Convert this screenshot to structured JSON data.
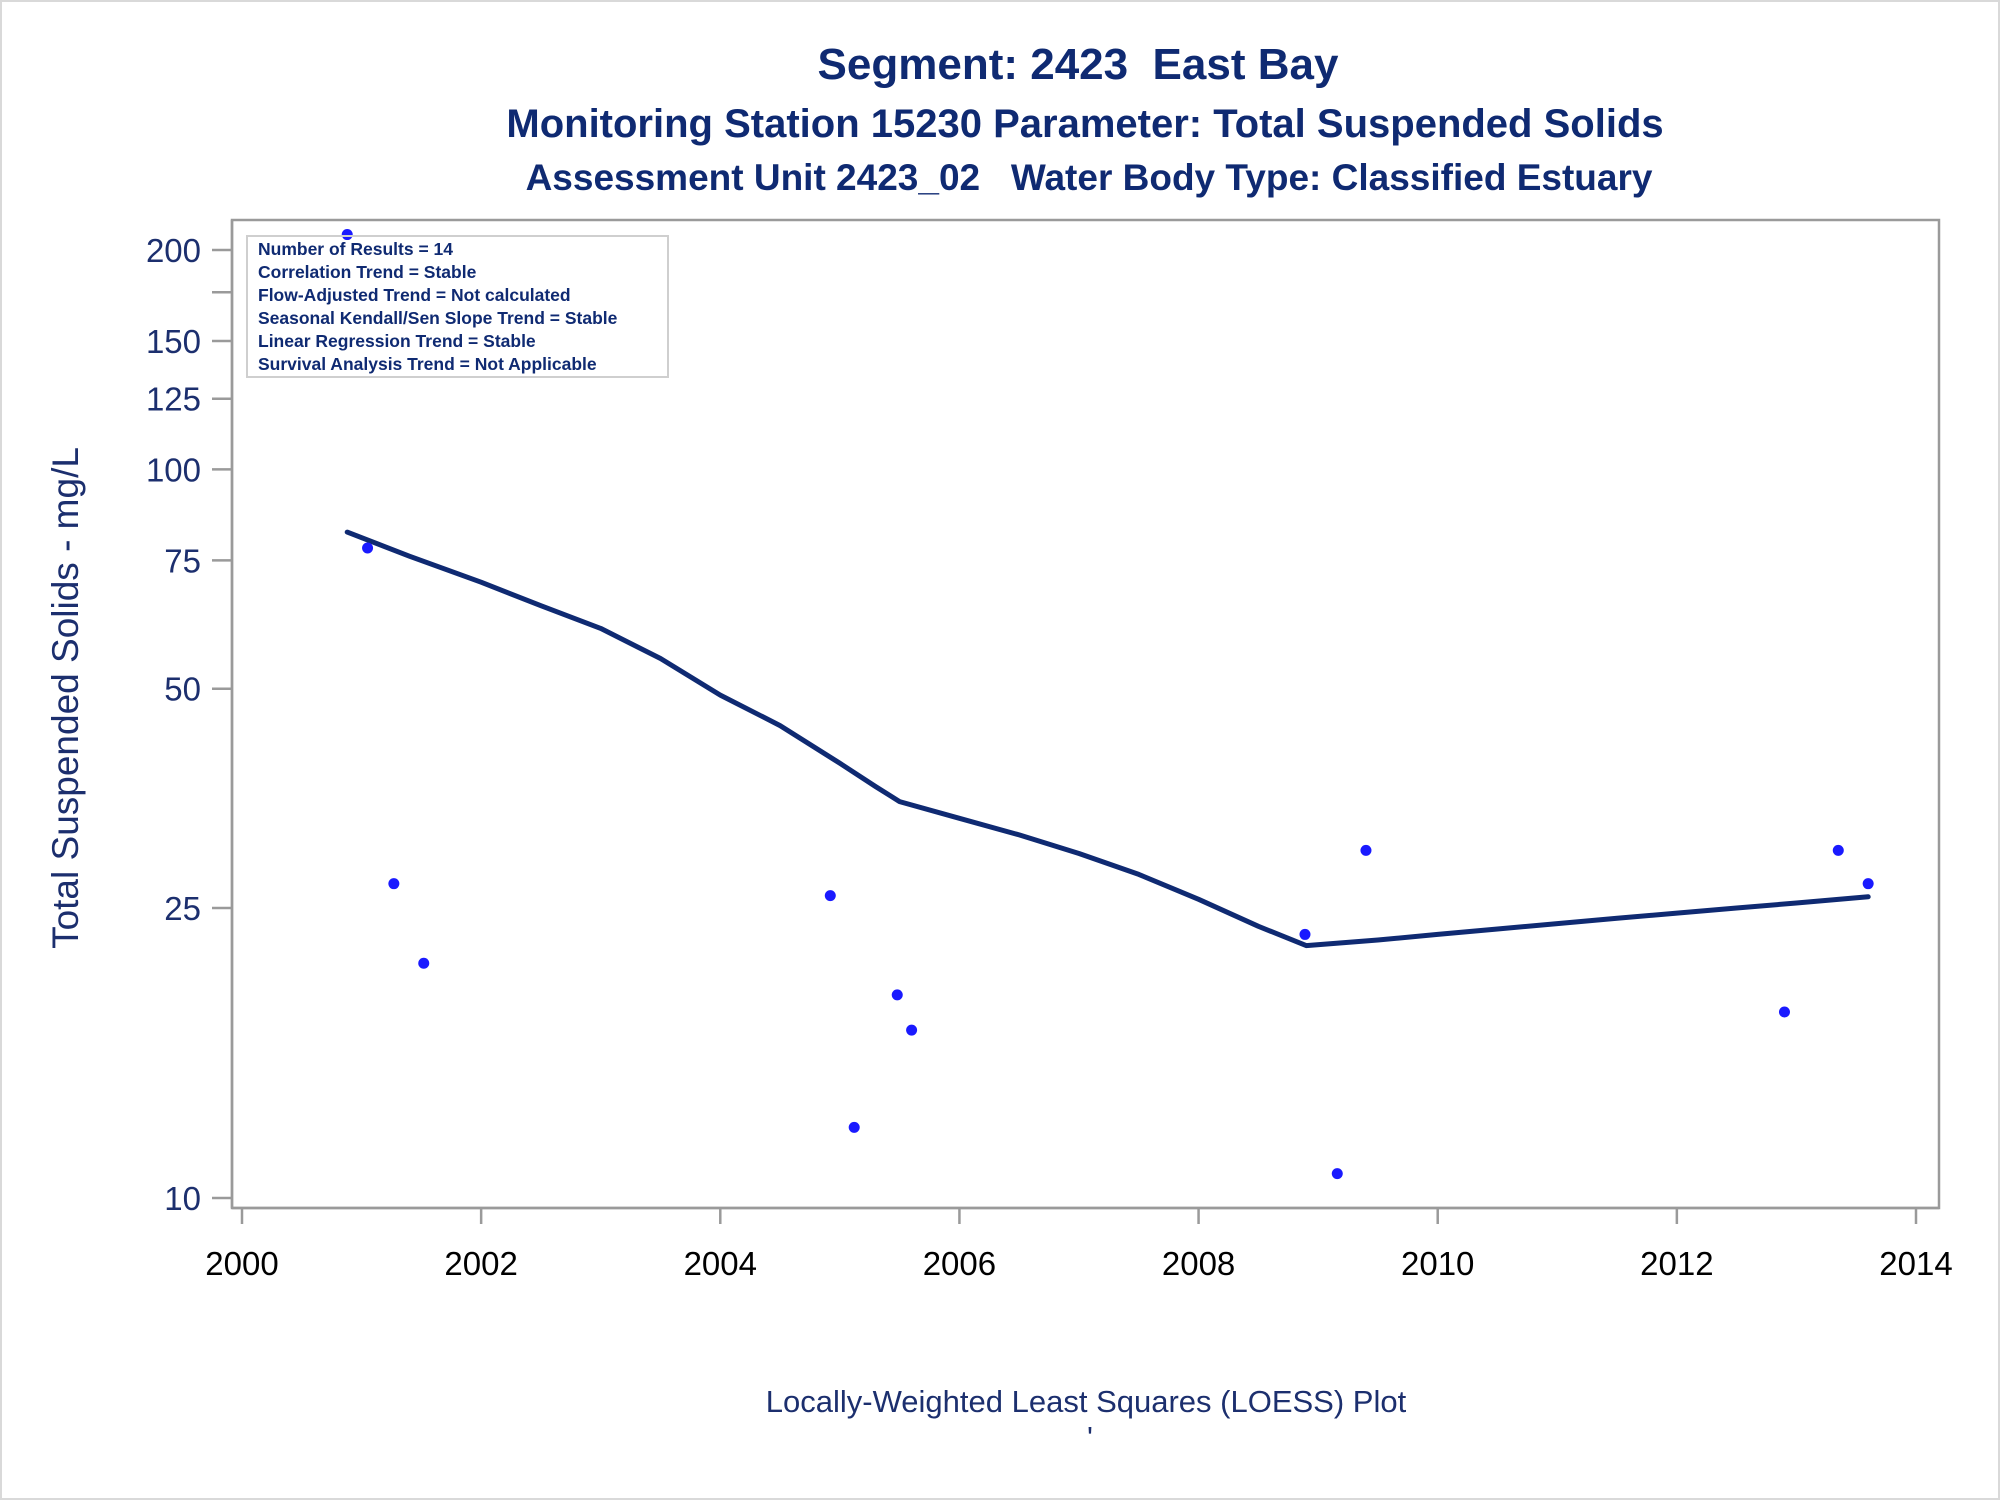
{
  "chart_data": {
    "type": "scatter",
    "title": "Segment: 2423  East Bay",
    "subtitle_1": "Monitoring Station 15230 Parameter: Total Suspended Solids",
    "subtitle_2": "Assessment Unit 2423_02   Water Body Type: Classified Estuary",
    "ylabel": "Total Suspended Solids - mg/L",
    "xlabel": "",
    "footnote": "Locally-Weighted Least Squares (LOESS) Plot",
    "footnote_mark": "'",
    "y_scale": "log",
    "xlim": [
      2000,
      2014
    ],
    "ylim": [
      10,
      220
    ],
    "x_ticks": [
      2000,
      2002,
      2004,
      2006,
      2008,
      2010,
      2012,
      2014
    ],
    "x_tick_labels": [
      "2000",
      "2002",
      "2004",
      "2006",
      "2008",
      "2010",
      "2012",
      "2014"
    ],
    "y_ticks": [
      10,
      25,
      50,
      75,
      100,
      125,
      150,
      175,
      200
    ],
    "y_tick_labels": [
      "10",
      "25",
      "50",
      "75",
      "100",
      "125",
      "150",
      "",
      "200"
    ],
    "grid": false,
    "stats_box_position": "top-left",
    "stats": [
      "Number of Results = 14",
      "Correlation Trend = Stable",
      "Flow-Adjusted Trend = Not calculated",
      "Seasonal Kendall/Sen Slope Trend = Stable",
      "Linear Regression Trend = Stable",
      "Survival Analysis Trend = Not Applicable"
    ],
    "colors": {
      "points": "#1a1aff",
      "loess_line": "#0f2a72",
      "axis": "#9a9a9a",
      "text": "#1c2f6e"
    },
    "series": [
      {
        "type": "scatter",
        "x": [
          2000.88,
          2001.05,
          2001.27,
          2001.52,
          2004.92,
          2005.12,
          2005.48,
          2005.6,
          2008.89,
          2009.16,
          2009.4,
          2012.9,
          2013.35,
          2013.6
        ],
        "y": [
          210,
          78,
          27,
          21,
          26,
          12.5,
          19,
          17,
          23,
          10.8,
          30,
          18,
          30,
          27
        ]
      },
      {
        "type": "line",
        "x": [
          2000.88,
          2001.4,
          2002.0,
          2002.5,
          2003.0,
          2003.5,
          2004.0,
          2004.5,
          2005.0,
          2005.3,
          2005.5,
          2006.0,
          2006.5,
          2007.0,
          2007.5,
          2008.0,
          2008.5,
          2008.9,
          2009.5,
          2010.0,
          2010.5,
          2011.0,
          2011.5,
          2012.0,
          2012.5,
          2013.0,
          2013.6
        ],
        "y": [
          82,
          76,
          70,
          65,
          60.5,
          55,
          49,
          44.5,
          39.5,
          36.7,
          35,
          33.2,
          31.5,
          29.7,
          27.8,
          25.7,
          23.6,
          22.2,
          22.6,
          23.0,
          23.4,
          23.8,
          24.2,
          24.6,
          25.0,
          25.4,
          25.9
        ]
      }
    ]
  }
}
